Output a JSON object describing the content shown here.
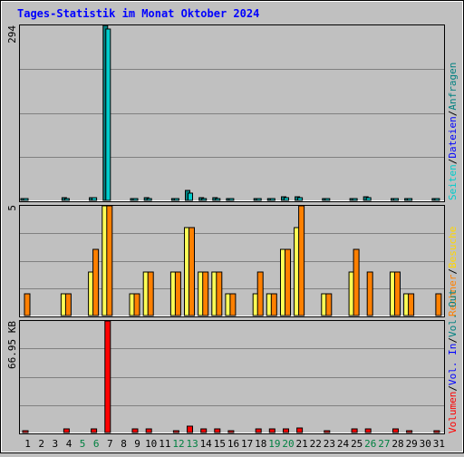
{
  "title": "Tages-Statistik im Monat Oktober 2024",
  "colors": {
    "background": "#C0C0C0",
    "title": "#0000FF",
    "grid": "#808080",
    "anfragen": "#008080",
    "dateien": "#00CCCC",
    "besuche": "#FFFF55",
    "rechner": "#FF8000",
    "volumen": "#FF0000",
    "weekday_label": "#000000",
    "weekend_label": "#008040"
  },
  "legend": {
    "top": [
      {
        "text": "Anfragen",
        "color": "#008080"
      },
      {
        "text": "Dateien",
        "color": "#0000FF"
      },
      {
        "text": "Seiten",
        "color": "#00CCCC"
      }
    ],
    "middle": [
      {
        "text": "Besuche",
        "color": "#FFD700"
      },
      {
        "text": "Rechner",
        "color": "#FF8000"
      }
    ],
    "bottom": [
      {
        "text": "Vol. Out",
        "color": "#008080"
      },
      {
        "text": "Vol. In",
        "color": "#0000FF"
      },
      {
        "text": "Volumen",
        "color": "#FF0000"
      }
    ],
    "separator": "/"
  },
  "chart_data": [
    {
      "type": "bar",
      "name": "hits",
      "y_max_label": "294",
      "y_min_label": "5",
      "ylim": [
        0,
        294
      ],
      "x": [
        1,
        2,
        3,
        4,
        5,
        6,
        7,
        8,
        9,
        10,
        11,
        12,
        13,
        14,
        15,
        16,
        17,
        18,
        19,
        20,
        21,
        22,
        23,
        24,
        25,
        26,
        27,
        28,
        29,
        30,
        31
      ],
      "series": [
        {
          "name": "Anfragen",
          "values": [
            2,
            0,
            0,
            4,
            0,
            5,
            294,
            0,
            3,
            4,
            0,
            3,
            16,
            5,
            4,
            1,
            0,
            3,
            3,
            6,
            6,
            0,
            1,
            0,
            3,
            6,
            0,
            3,
            1,
            0,
            2
          ]
        },
        {
          "name": "Dateien",
          "values": [
            1,
            0,
            0,
            2,
            0,
            4,
            288,
            0,
            2,
            3,
            0,
            2,
            12,
            3,
            3,
            1,
            0,
            2,
            2,
            4,
            5,
            0,
            1,
            0,
            2,
            4,
            0,
            2,
            1,
            0,
            1
          ]
        }
      ]
    },
    {
      "type": "bar",
      "name": "visits",
      "y_max_label": "5",
      "ylim": [
        0,
        5
      ],
      "x": [
        1,
        2,
        3,
        4,
        5,
        6,
        7,
        8,
        9,
        10,
        11,
        12,
        13,
        14,
        15,
        16,
        17,
        18,
        19,
        20,
        21,
        22,
        23,
        24,
        25,
        26,
        27,
        28,
        29,
        30,
        31
      ],
      "series": [
        {
          "name": "Besuche",
          "values": [
            0,
            0,
            0,
            1,
            0,
            2,
            5,
            0,
            1,
            2,
            0,
            2,
            4,
            2,
            2,
            1,
            0,
            1,
            1,
            3,
            4,
            0,
            1,
            0,
            2,
            0,
            0,
            2,
            1,
            0,
            0
          ]
        },
        {
          "name": "Rechner",
          "values": [
            1,
            0,
            0,
            1,
            0,
            3,
            5,
            0,
            1,
            2,
            0,
            2,
            4,
            2,
            2,
            1,
            0,
            2,
            1,
            3,
            5,
            0,
            1,
            0,
            3,
            2,
            0,
            2,
            1,
            0,
            1
          ]
        }
      ]
    },
    {
      "type": "bar",
      "name": "volume",
      "y_max_label": "66.95 KB",
      "ylim": [
        0,
        66.95
      ],
      "x": [
        1,
        2,
        3,
        4,
        5,
        6,
        7,
        8,
        9,
        10,
        11,
        12,
        13,
        14,
        15,
        16,
        17,
        18,
        19,
        20,
        21,
        22,
        23,
        24,
        25,
        26,
        27,
        28,
        29,
        30,
        31
      ],
      "series": [
        {
          "name": "Volumen",
          "values": [
            1,
            0,
            0,
            2,
            0,
            2,
            66.95,
            0,
            2,
            2,
            0,
            1,
            4,
            2,
            2,
            1,
            0,
            2,
            2,
            2,
            2.5,
            0,
            1,
            0,
            2,
            2,
            0,
            2,
            1,
            0,
            1
          ]
        }
      ]
    }
  ],
  "x_labels": [
    "1",
    "2",
    "3",
    "4",
    "5",
    "6",
    "7",
    "8",
    "9",
    "10",
    "11",
    "12",
    "13",
    "14",
    "15",
    "16",
    "17",
    "18",
    "19",
    "20",
    "21",
    "22",
    "23",
    "24",
    "25",
    "26",
    "27",
    "28",
    "29",
    "30",
    "31"
  ],
  "weekend_days": [
    5,
    6,
    12,
    13,
    19,
    20,
    26,
    27
  ]
}
